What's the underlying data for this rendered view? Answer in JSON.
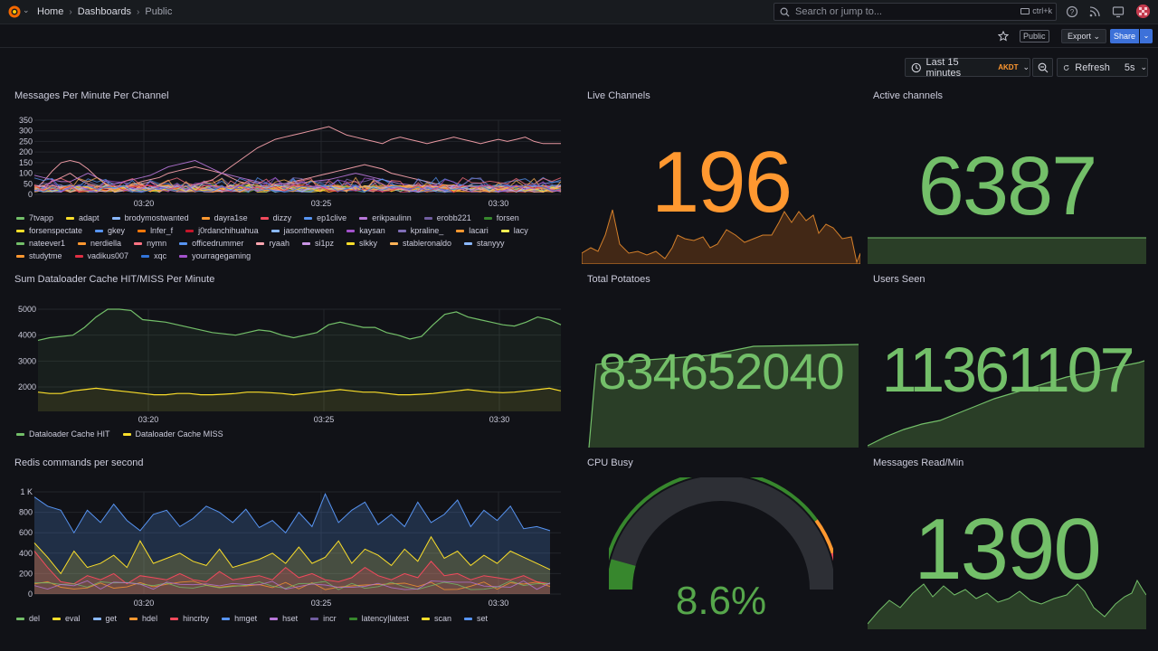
{
  "breadcrumb": {
    "home": "Home",
    "dashboards": "Dashboards",
    "current": "Public"
  },
  "search": {
    "placeholder": "Search or jump to...",
    "shortcut": "ctrl+k"
  },
  "toolbar": {
    "public_label": "Public",
    "export_label": "Export",
    "share_label": "Share"
  },
  "timepicker": {
    "range": "Last 15 minutes",
    "timezone": "AKDT",
    "refresh_label": "Refresh",
    "interval": "5s"
  },
  "colors": {
    "green": "#73bf69",
    "orange": "#ff9830",
    "blue": "#3d71d9"
  },
  "panels": {
    "messages": {
      "title": "Messages Per Minute Per Channel",
      "yticks": [
        "350",
        "300",
        "250",
        "200",
        "150",
        "100",
        "50",
        "0"
      ],
      "xticks": [
        "03:20",
        "03:25",
        "03:30"
      ],
      "legend": [
        {
          "name": "7tvapp",
          "color": "#73bf69"
        },
        {
          "name": "adapt",
          "color": "#fade2a"
        },
        {
          "name": "brodymostwanted",
          "color": "#8ab8ff"
        },
        {
          "name": "dayra1se",
          "color": "#ff9830"
        },
        {
          "name": "dizzy",
          "color": "#f2495c"
        },
        {
          "name": "ep1clive",
          "color": "#5794f2"
        },
        {
          "name": "erikpaulinn",
          "color": "#b877d9"
        },
        {
          "name": "erobb221",
          "color": "#705da0"
        },
        {
          "name": "forsen",
          "color": "#37872d"
        },
        {
          "name": "forsenspectate",
          "color": "#fade2a"
        },
        {
          "name": "gkey",
          "color": "#5794f2"
        },
        {
          "name": "lnfer_f",
          "color": "#ff780a"
        },
        {
          "name": "j0rdanchihuahua",
          "color": "#c4162a"
        },
        {
          "name": "jasontheween",
          "color": "#8ab8ff"
        },
        {
          "name": "kaysan",
          "color": "#a352cc"
        },
        {
          "name": "kpraline_",
          "color": "#806eb7"
        },
        {
          "name": "lacari",
          "color": "#ff9830"
        },
        {
          "name": "lacy",
          "color": "#ffee52"
        },
        {
          "name": "nateever1",
          "color": "#73bf69"
        },
        {
          "name": "nerdiella",
          "color": "#ff9830"
        },
        {
          "name": "nymn",
          "color": "#ff7383"
        },
        {
          "name": "officedrummer",
          "color": "#5794f2"
        },
        {
          "name": "ryaah",
          "color": "#ffa6b0"
        },
        {
          "name": "si1pz",
          "color": "#ca95e5"
        },
        {
          "name": "slkky",
          "color": "#fade2a"
        },
        {
          "name": "stableronaldo",
          "color": "#ffb357"
        },
        {
          "name": "stanyyy",
          "color": "#8ab8ff"
        },
        {
          "name": "studytme",
          "color": "#ff9830"
        },
        {
          "name": "vadikus007",
          "color": "#e02f44"
        },
        {
          "name": "xqc",
          "color": "#3274d9"
        },
        {
          "name": "yourragegaming",
          "color": "#a352cc"
        }
      ]
    },
    "live_channels": {
      "title": "Live Channels",
      "value": "196"
    },
    "active_channels": {
      "title": "Active channels",
      "value": "6387"
    },
    "dataloader": {
      "title": "Sum Dataloader Cache HIT/MISS Per Minute",
      "yticks": [
        "5000",
        "4000",
        "3000",
        "2000"
      ],
      "xticks": [
        "03:20",
        "03:25",
        "03:30"
      ],
      "legend": [
        {
          "name": "Dataloader Cache HIT",
          "color": "#73bf69"
        },
        {
          "name": "Dataloader Cache MISS",
          "color": "#fade2a"
        }
      ]
    },
    "total_potatoes": {
      "title": "Total Potatoes",
      "value": "834652040"
    },
    "users_seen": {
      "title": "Users Seen",
      "value": "11361107"
    },
    "redis": {
      "title": "Redis commands per second",
      "yticks": [
        "1 K",
        "800",
        "600",
        "400",
        "200",
        "0"
      ],
      "xticks": [
        "03:20",
        "03:25",
        "03:30"
      ],
      "legend": [
        {
          "name": "del",
          "color": "#73bf69"
        },
        {
          "name": "eval",
          "color": "#fade2a"
        },
        {
          "name": "get",
          "color": "#8ab8ff"
        },
        {
          "name": "hdel",
          "color": "#ff9830"
        },
        {
          "name": "hincrby",
          "color": "#f2495c"
        },
        {
          "name": "hmget",
          "color": "#5794f2"
        },
        {
          "name": "hset",
          "color": "#b877d9"
        },
        {
          "name": "incr",
          "color": "#705da0"
        },
        {
          "name": "latency|latest",
          "color": "#37872d"
        },
        {
          "name": "scan",
          "color": "#fade2a"
        },
        {
          "name": "set",
          "color": "#5794f2"
        }
      ]
    },
    "cpu_busy": {
      "title": "CPU Busy",
      "value": "8.6%",
      "percent": 8.6
    },
    "messages_read": {
      "title": "Messages Read/Min",
      "value": "1390"
    }
  }
}
